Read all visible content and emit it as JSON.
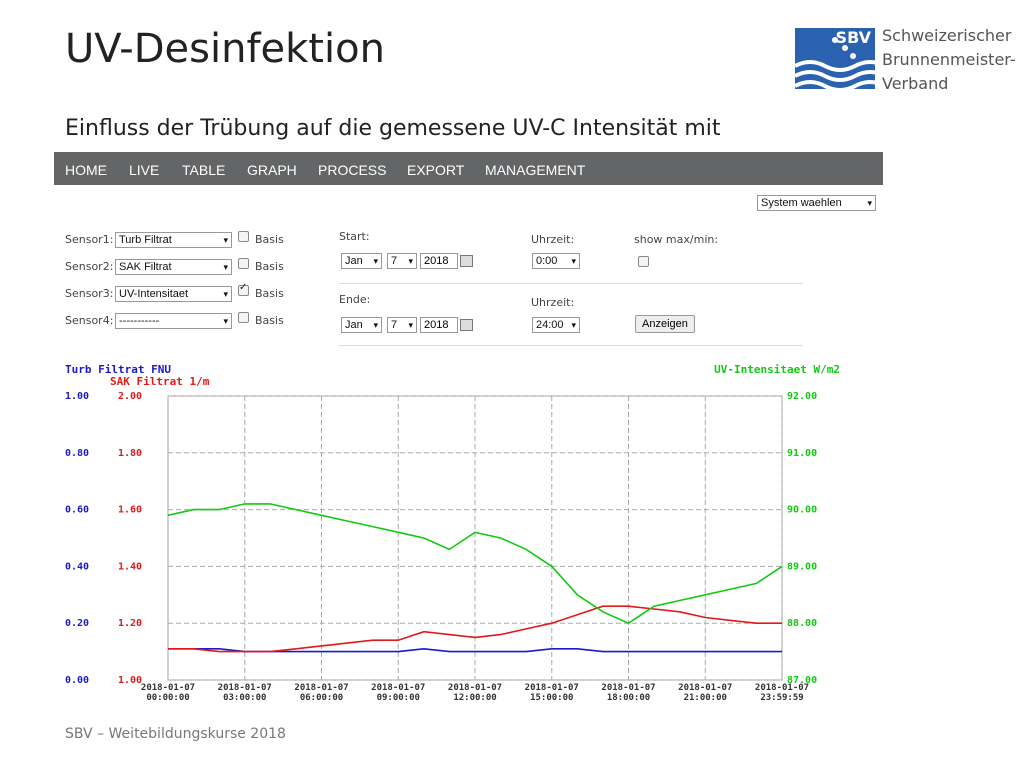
{
  "slide": {
    "title": "UV-Desinfektion",
    "subtitle": "Einfluss der Trübung auf die gemessene UV-C Intensität mit",
    "footer": "SBV – Weitebildungskurse 2018"
  },
  "logo": {
    "abbr": "SBV",
    "lines": [
      "Schweizerischer",
      "Brunnenmeister-",
      "Verband"
    ]
  },
  "nav": [
    "HOME",
    "LIVE",
    "TABLE",
    "GRAPH",
    "PROCESS",
    "EXPORT",
    "MANAGEMENT"
  ],
  "form": {
    "system": "System waehlen",
    "basis": "Basis",
    "sensors": [
      {
        "label": "Sensor1:",
        "value": "Turb Filtrat",
        "basis_checked": false
      },
      {
        "label": "Sensor2:",
        "value": "SAK Filtrat",
        "basis_checked": false
      },
      {
        "label": "Sensor3:",
        "value": "UV-Intensitaet",
        "basis_checked": true
      },
      {
        "label": "Sensor4:",
        "value": "-----------",
        "basis_checked": false
      }
    ],
    "start_label": "Start:",
    "end_label": "Ende:",
    "time_label": "Uhrzeit:",
    "show_label": "show max/min:",
    "start": {
      "month": "Jan",
      "day": "7",
      "year": "2018",
      "time": "0:00"
    },
    "end": {
      "month": "Jan",
      "day": "7",
      "year": "2018",
      "time": "24:00"
    },
    "button": "Anzeigen"
  },
  "chart_data": {
    "type": "line",
    "grid": true,
    "x": [
      "2018-01-07 00:00:00",
      "2018-01-07 01:00:00",
      "2018-01-07 02:00:00",
      "2018-01-07 03:00:00",
      "2018-01-07 04:00:00",
      "2018-01-07 05:00:00",
      "2018-01-07 06:00:00",
      "2018-01-07 07:00:00",
      "2018-01-07 08:00:00",
      "2018-01-07 09:00:00",
      "2018-01-07 10:00:00",
      "2018-01-07 11:00:00",
      "2018-01-07 12:00:00",
      "2018-01-07 13:00:00",
      "2018-01-07 14:00:00",
      "2018-01-07 15:00:00",
      "2018-01-07 16:00:00",
      "2018-01-07 17:00:00",
      "2018-01-07 18:00:00",
      "2018-01-07 19:00:00",
      "2018-01-07 20:00:00",
      "2018-01-07 21:00:00",
      "2018-01-07 22:00:00",
      "2018-01-07 23:00:00",
      "2018-01-07 23:59:59"
    ],
    "xlim": [
      "2018-01-07 00:00:00",
      "2018-01-07 23:59:59"
    ],
    "xticks": [
      "2018-01-07 00:00:00",
      "2018-01-07 03:00:00",
      "2018-01-07 06:00:00",
      "2018-01-07 09:00:00",
      "2018-01-07 12:00:00",
      "2018-01-07 15:00:00",
      "2018-01-07 18:00:00",
      "2018-01-07 21:00:00",
      "2018-01-07 23:59:59"
    ],
    "ylim": [
      0,
      1
    ],
    "yticks": [
      {
        "value": 0,
        "label": "0.00"
      },
      {
        "value": 0.2,
        "label": "0.20"
      },
      {
        "value": 0.4,
        "label": "0.40"
      },
      {
        "value": 0.6,
        "label": "0.60"
      },
      {
        "value": 0.8,
        "label": "0.80"
      },
      {
        "value": 1,
        "label": "1.00"
      }
    ],
    "y2lim": [
      1,
      2
    ],
    "y2ticks": [
      {
        "value": 1,
        "label": "1.00"
      },
      {
        "value": 1.2,
        "label": "1.20"
      },
      {
        "value": 1.4,
        "label": "1.40"
      },
      {
        "value": 1.6,
        "label": "1.60"
      },
      {
        "value": 1.8,
        "label": "1.80"
      },
      {
        "value": 2,
        "label": "2.00"
      }
    ],
    "y3lim": [
      87,
      92
    ],
    "y3ticks": [
      {
        "value": 87,
        "label": "87.00"
      },
      {
        "value": 88,
        "label": "88.00"
      },
      {
        "value": 89,
        "label": "89.00"
      },
      {
        "value": 90,
        "label": "90.00"
      },
      {
        "value": 91,
        "label": "91.00"
      },
      {
        "value": 92,
        "label": "92.00"
      }
    ],
    "series": [
      {
        "name": "Turb Filtrat FNU",
        "color": "#1a1acc",
        "axis": "y",
        "values": [
          0.11,
          0.11,
          0.11,
          0.1,
          0.1,
          0.1,
          0.1,
          0.1,
          0.1,
          0.1,
          0.11,
          0.1,
          0.1,
          0.1,
          0.1,
          0.11,
          0.11,
          0.1,
          0.1,
          0.1,
          0.1,
          0.1,
          0.1,
          0.1,
          0.1
        ]
      },
      {
        "name": "SAK Filtrat 1/m",
        "color": "#e01a1a",
        "axis": "y2",
        "values": [
          1.11,
          1.11,
          1.1,
          1.1,
          1.1,
          1.11,
          1.12,
          1.13,
          1.14,
          1.14,
          1.17,
          1.16,
          1.15,
          1.16,
          1.18,
          1.2,
          1.23,
          1.26,
          1.26,
          1.25,
          1.24,
          1.22,
          1.21,
          1.2,
          1.2
        ]
      },
      {
        "name": "UV-Intensitaet W/m2",
        "color": "#14c814",
        "axis": "y3",
        "values": [
          89.9,
          90.0,
          90.0,
          90.1,
          90.1,
          90.0,
          89.9,
          89.8,
          89.7,
          89.6,
          89.5,
          89.3,
          89.6,
          89.5,
          89.3,
          89.0,
          88.5,
          88.2,
          88.0,
          88.3,
          88.4,
          88.5,
          88.6,
          88.7,
          89.0
        ]
      }
    ]
  }
}
